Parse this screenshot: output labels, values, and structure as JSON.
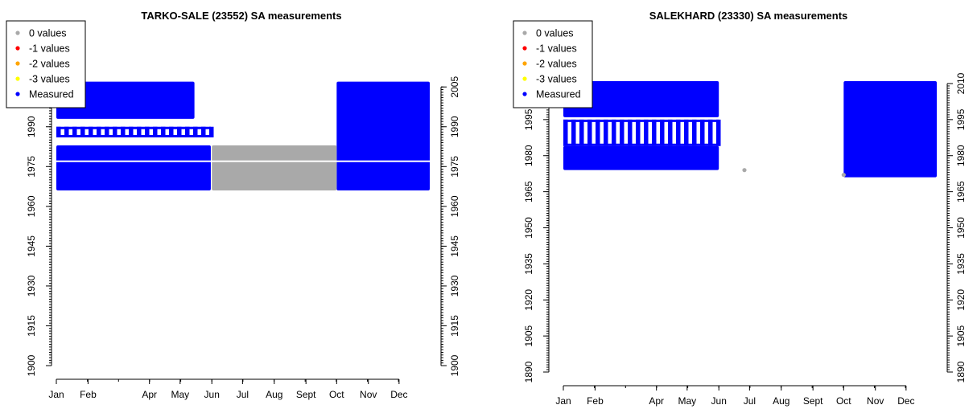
{
  "colors": {
    "zero": "#a9a9a9",
    "minus1": "#ff0000",
    "minus2": "#ffa500",
    "minus3": "#ffff00",
    "measured": "#0000ff"
  },
  "chart_data": [
    {
      "type": "scatter",
      "title": "TARKO-SALE (23552) SA measurements",
      "xlabel": "",
      "ylabel": "",
      "x_ticks": [
        "Jan",
        "Feb",
        "Apr",
        "May",
        "Jun",
        "Jul",
        "Aug",
        "Sept",
        "Oct",
        "Nov",
        "Dec"
      ],
      "y_ticks": [
        "1900",
        "1915",
        "1930",
        "1945",
        "1960",
        "1975",
        "1990",
        "2005"
      ],
      "ylim": [
        1900,
        2009
      ],
      "legend": [
        "0 values",
        "-1 values",
        "-2 values",
        "-3 values",
        "Measured"
      ],
      "legend_position": "top-left",
      "series": [
        {
          "name": "Measured",
          "color": "#0000ff",
          "regions": [
            {
              "x": [
                "2024-01-01",
                "2024-05-31"
              ],
              "y": [
                1966,
                1983
              ]
            },
            {
              "x": [
                "2024-01-01",
                "2024-05-31"
              ],
              "y": [
                1986,
                1990
              ],
              "pattern": "striped"
            },
            {
              "x": [
                "2024-01-01",
                "2024-05-15"
              ],
              "y": [
                1993,
                2007
              ]
            },
            {
              "x": [
                "2024-10-01",
                "2024-12-31"
              ],
              "y": [
                1966,
                2007
              ]
            }
          ]
        },
        {
          "name": "0 values",
          "color": "#a9a9a9",
          "regions": [
            {
              "x": [
                "2024-06-01",
                "2024-10-01"
              ],
              "y": [
                1966,
                1983
              ]
            }
          ]
        }
      ]
    },
    {
      "type": "scatter",
      "title": "SALEKHARD (23330) SA measurements",
      "xlabel": "",
      "ylabel": "",
      "x_ticks": [
        "Jan",
        "Feb",
        "Apr",
        "May",
        "Jun",
        "Jul",
        "Aug",
        "Sept",
        "Oct",
        "Nov",
        "Dec"
      ],
      "y_ticks": [
        "1890",
        "1905",
        "1920",
        "1935",
        "1950",
        "1965",
        "1980",
        "1995",
        "2010"
      ],
      "ylim": [
        1890,
        2013
      ],
      "legend": [
        "0 values",
        "-1 values",
        "-2 values",
        "-3 values",
        "Measured"
      ],
      "legend_position": "top-left",
      "series": [
        {
          "name": "Measured",
          "color": "#0000ff",
          "regions": [
            {
              "x": [
                "2024-01-01",
                "2024-06-01"
              ],
              "y": [
                1974,
                1984
              ]
            },
            {
              "x": [
                "2024-01-01",
                "2024-06-01"
              ],
              "y": [
                1984,
                1995
              ],
              "pattern": "striped"
            },
            {
              "x": [
                "2024-01-01",
                "2024-06-01"
              ],
              "y": [
                1996,
                2011
              ]
            },
            {
              "x": [
                "2024-10-01",
                "2024-12-31"
              ],
              "y": [
                1971,
                2011
              ]
            }
          ]
        },
        {
          "name": "0 values",
          "color": "#a9a9a9",
          "points": [
            {
              "x": "2024-06-26",
              "y": 1974
            },
            {
              "x": "2024-10-01",
              "y": 1972
            }
          ]
        }
      ]
    }
  ]
}
